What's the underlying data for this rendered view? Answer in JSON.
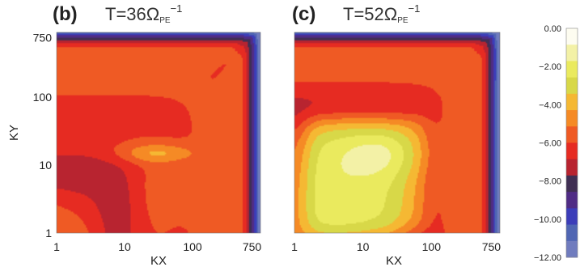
{
  "chart_data": {
    "type": "heatmap",
    "panels": [
      {
        "id": "b",
        "label": "(b)",
        "title_main": "T=36Ω",
        "title_sub": "PE",
        "title_sup": "−1",
        "xlabel": "KX",
        "ylabel": "KY",
        "xscale": "log",
        "yscale": "log",
        "xlim": [
          1,
          1000
        ],
        "ylim": [
          1,
          900
        ],
        "xticks": [
          {
            "value": 1,
            "label": "1"
          },
          {
            "value": 10,
            "label": "10"
          },
          {
            "value": 100,
            "label": "100"
          },
          {
            "value": 750,
            "label": "750"
          }
        ],
        "yticks": [
          {
            "value": 1,
            "label": "1"
          },
          {
            "value": 10,
            "label": "10"
          },
          {
            "value": 100,
            "label": "100"
          },
          {
            "value": 750,
            "label": "750"
          }
        ],
        "field": {
          "background": -4.9,
          "features": [
            {
              "kind": "blob",
              "kx": 30,
              "ky": 15,
              "skx": 0.4,
              "sky": 0.1,
              "amp": 1.8
            },
            {
              "kind": "blob",
              "kx": 2,
              "ky": 3,
              "skx": 0.6,
              "sky": 0.5,
              "amp": -0.7
            },
            {
              "kind": "blob",
              "kx": 35,
              "ky": 4,
              "skx": 0.35,
              "sky": 0.4,
              "amp": 0.5
            },
            {
              "kind": "ridge",
              "kxk": 8,
              "sk": 0.28,
              "amp": -1.9
            },
            {
              "kind": "ridge",
              "kxk": 55,
              "sk": 0.4,
              "amp": -1.2
            },
            {
              "kind": "ridge",
              "kxk": 260,
              "sk": 0.3,
              "amp": -0.4
            },
            {
              "kind": "diagonal",
              "width": 0.08,
              "from": 250,
              "amp": -0.7
            },
            {
              "kind": "edge",
              "start": 400,
              "full": 1000,
              "drop": 7.5
            }
          ]
        }
      },
      {
        "id": "c",
        "label": "(c)",
        "title_main": "T=52Ω",
        "title_sub": "PE",
        "title_sup": "−1",
        "xlabel": "KX",
        "ylabel": "",
        "xscale": "log",
        "yscale": "log",
        "xlim": [
          1,
          1000
        ],
        "ylim": [
          1,
          900
        ],
        "xticks": [
          {
            "value": 1,
            "label": "1"
          },
          {
            "value": 10,
            "label": "10"
          },
          {
            "value": 100,
            "label": "100"
          },
          {
            "value": 750,
            "label": "750"
          }
        ],
        "yticks": [],
        "field": {
          "background": -5.0,
          "features": [
            {
              "kind": "plateau",
              "kx": [
                1.5,
                85
              ],
              "ky": [
                1,
                50
              ],
              "soft": 0.1,
              "amp": 3.3
            },
            {
              "kind": "blob",
              "kx": 20,
              "ky": 15,
              "skx": 0.45,
              "sky": 0.25,
              "amp": 1.3
            },
            {
              "kind": "ridge",
              "kxk": 70,
              "sk": 0.25,
              "amp": -1.2
            },
            {
              "kind": "ridge",
              "kxk": 55,
              "sk": 0.5,
              "amp": -1.0
            },
            {
              "kind": "diagonal",
              "width": 0.08,
              "from": 250,
              "amp": -0.7
            },
            {
              "kind": "edge",
              "start": 400,
              "full": 1000,
              "drop": 7.5
            }
          ]
        }
      }
    ],
    "colorbar": {
      "min": -12,
      "max": 0,
      "levels": [
        0,
        -1,
        -2,
        -3,
        -4,
        -5,
        -6,
        -7,
        -8,
        -9,
        -10,
        -11,
        -12
      ],
      "tick_labels": [
        "0.00",
        "−2.00",
        "−4.00",
        "−6.00",
        "−8.00",
        "−10.00",
        "−12.00"
      ],
      "colors": [
        "#fdfcf0",
        "#f3f1a6",
        "#eaea5e",
        "#d8d848",
        "#f5b833",
        "#f58a25",
        "#ef5a24",
        "#e62b22",
        "#b82430",
        "#402f53",
        "#502c85",
        "#3c3db9",
        "#5066b3",
        "#707cbe"
      ]
    }
  }
}
